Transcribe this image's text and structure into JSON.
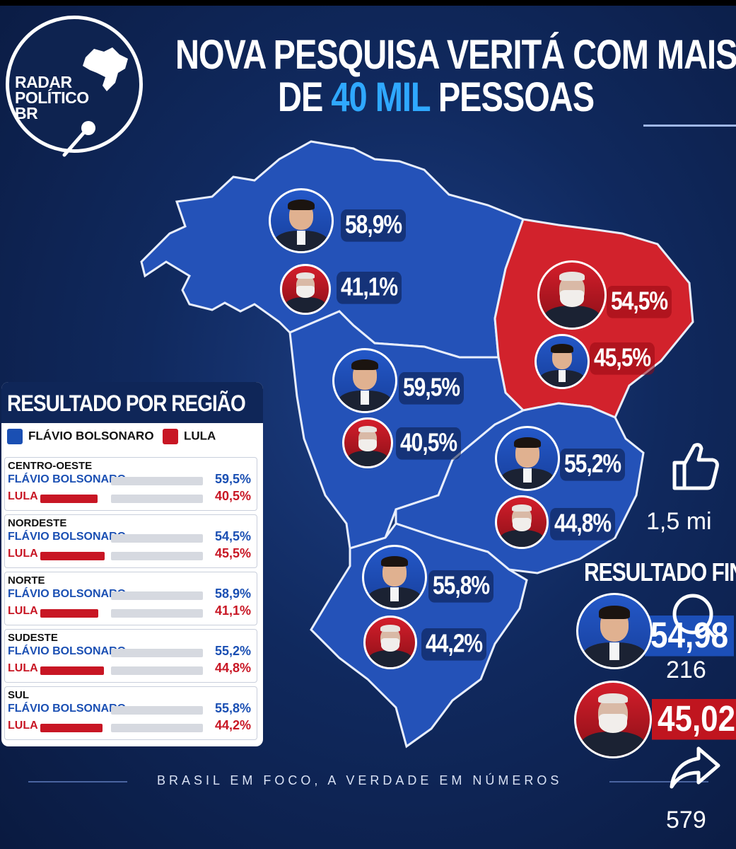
{
  "logo": {
    "text": "RADAR\nPOLÍTICO\nBR"
  },
  "title": {
    "line1": "NOVA PESQUISA VERITÁ COM MAIS",
    "line2_prefix": "DE ",
    "line2_highlight": "40 MIL",
    "line2_suffix": " PESSOAS"
  },
  "map": {
    "norte": {
      "candidate1_pct": "58,9%",
      "candidate2_pct": "41,1%"
    },
    "nordeste": {
      "candidate1_pct": "54,5%",
      "candidate2_pct": "45,5%"
    },
    "centro_oeste": {
      "candidate1_pct": "59,5%",
      "candidate2_pct": "40,5%"
    },
    "sudeste": {
      "candidate1_pct": "55,2%",
      "candidate2_pct": "44,8%"
    },
    "sul": {
      "candidate1_pct": "55,8%",
      "candidate2_pct": "44,2%"
    }
  },
  "panel": {
    "title": "RESULTADO POR REGIÃO",
    "legend1": "FLÁVIO BOLSONARO",
    "legend2": "LULA",
    "colors": {
      "candidate1": "#1a4fb3",
      "candidate2": "#c81624"
    },
    "regions": [
      {
        "name": "CENTRO-OESTE",
        "c1": "FLÁVIO BOLSONARO",
        "c2": "LULA",
        "v1": "59,5%",
        "v2": "40,5%",
        "v2_fraction": 0.405
      },
      {
        "name": "NORDESTE",
        "c1": "FLÁVIO BOLSONARO",
        "c2": "LULA",
        "v1": "54,5%",
        "v2": "45,5%",
        "v2_fraction": 0.455
      },
      {
        "name": "NORTE",
        "c1": "FLÁVIO BOLSONARO",
        "c2": "LULA",
        "v1": "58,9%",
        "v2": "41,1%",
        "v2_fraction": 0.411
      },
      {
        "name": "SUDESTE",
        "c1": "FLÁVIO BOLSONARO",
        "c2": "LULA",
        "v1": "55,2%",
        "v2": "44,8%",
        "v2_fraction": 0.448
      },
      {
        "name": "SUL",
        "c1": "FLÁVIO BOLSONARO",
        "c2": "LULA",
        "v1": "55,8%",
        "v2": "44,2%",
        "v2_fraction": 0.442
      }
    ]
  },
  "final": {
    "title": "RESULTADO FINA",
    "candidate1_pct": "54,98",
    "candidate2_pct": "45,02"
  },
  "footer": "BRASIL EM FOCO, A VERDADE EM NÚMEROS",
  "overlay": {
    "likes": "1,5 mi",
    "comments": "216",
    "shares": "579"
  }
}
